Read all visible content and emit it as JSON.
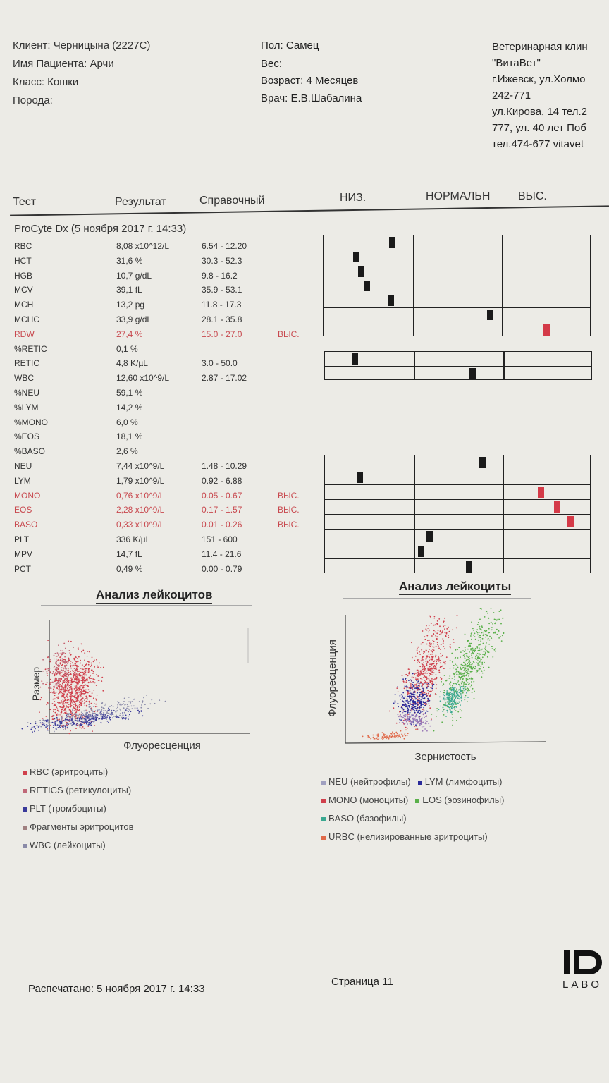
{
  "client": {
    "client_line": "Клиент: Черницына (2227С)",
    "patient_line": "Имя Пациента: Арчи",
    "class_line": "Класс: Кошки",
    "breed_line": "Порода:",
    "sex_line": "Пол: Самец",
    "weight_line": "Вес:",
    "age_line": "Возраст: 4 Месяцев",
    "doctor_line": "Врач: Е.В.Шабалина"
  },
  "clinic": {
    "lines": [
      "Ветеринарная клин",
      "\"ВитаВет\"",
      "г.Ижевск, ул.Холмо",
      "242-771",
      "ул.Кирова, 14 тел.2",
      "777, ул. 40 лет Поб",
      "тел.474-677 vitavet"
    ]
  },
  "columns": {
    "test": "Тест",
    "result": "Результат",
    "reference": "Справочный",
    "low": "НИЗ.",
    "normal": "НОРМАЛЬН",
    "high": "ВЫС."
  },
  "instrument": "ProCyte Dx (5 ноября 2017 г. 14:33)",
  "rows": [
    {
      "name": "RBC",
      "result": "8,08 x10^12/L",
      "ref": "6.54 - 12.20",
      "flag": ""
    },
    {
      "name": "HCT",
      "result": "31,6 %",
      "ref": "30.3 - 52.3",
      "flag": ""
    },
    {
      "name": "HGB",
      "result": "10,7 g/dL",
      "ref": "9.8 - 16.2",
      "flag": ""
    },
    {
      "name": "MCV",
      "result": "39,1 fL",
      "ref": "35.9 - 53.1",
      "flag": ""
    },
    {
      "name": "MCH",
      "result": "13,2 pg",
      "ref": "11.8 - 17.3",
      "flag": ""
    },
    {
      "name": "MCHC",
      "result": "33,9 g/dL",
      "ref": "28.1 - 35.8",
      "flag": ""
    },
    {
      "name": "RDW",
      "result": "27,4 %",
      "ref": "15.0 - 27.0",
      "flag": "ВЫС."
    },
    {
      "name": "%RETIC",
      "result": "0,1 %",
      "ref": "",
      "flag": ""
    },
    {
      "name": "RETIC",
      "result": "4,8 K/µL",
      "ref": "3.0 - 50.0",
      "flag": ""
    },
    {
      "name": "WBC",
      "result": "12,60 x10^9/L",
      "ref": "2.87 - 17.02",
      "flag": ""
    },
    {
      "name": "%NEU",
      "result": "59,1 %",
      "ref": "",
      "flag": ""
    },
    {
      "name": "%LYM",
      "result": "14,2 %",
      "ref": "",
      "flag": ""
    },
    {
      "name": "%MONO",
      "result": "6,0 %",
      "ref": "",
      "flag": ""
    },
    {
      "name": "%EOS",
      "result": "18,1 %",
      "ref": "",
      "flag": ""
    },
    {
      "name": "%BASO",
      "result": "2,6 %",
      "ref": "",
      "flag": ""
    },
    {
      "name": "NEU",
      "result": "7,44 x10^9/L",
      "ref": "1.48 - 10.29",
      "flag": ""
    },
    {
      "name": "LYM",
      "result": "1,79 x10^9/L",
      "ref": "0.92 - 6.88",
      "flag": ""
    },
    {
      "name": "MONO",
      "result": "0,76 x10^9/L",
      "ref": "0.05 - 0.67",
      "flag": "ВЫС."
    },
    {
      "name": "EOS",
      "result": "2,28 x10^9/L",
      "ref": "0.17 - 1.57",
      "flag": "ВЫС."
    },
    {
      "name": "BASO",
      "result": "0,33 x10^9/L",
      "ref": "0.01 - 0.26",
      "flag": "ВЫС."
    },
    {
      "name": "PLT",
      "result": "336 K/µL",
      "ref": "151 - 600",
      "flag": ""
    },
    {
      "name": "MPV",
      "result": "14,7 fL",
      "ref": "11.4 - 21.6",
      "flag": ""
    },
    {
      "name": "PCT",
      "result": "0,49 %",
      "ref": "0.00 - 0.79",
      "flag": ""
    }
  ],
  "bar_groups": [
    {
      "markers": [
        {
          "pos": 0.245,
          "high": false
        },
        {
          "pos": 0.11,
          "high": false
        },
        {
          "pos": 0.13,
          "high": false
        },
        {
          "pos": 0.15,
          "high": false
        },
        {
          "pos": 0.24,
          "high": false
        },
        {
          "pos": 0.61,
          "high": false
        },
        {
          "pos": 0.82,
          "high": true
        }
      ]
    },
    {
      "markers": [
        {
          "pos": 0.1,
          "high": false
        },
        {
          "pos": 0.54,
          "high": false
        }
      ]
    },
    {
      "markers": [
        {
          "pos": 0.58,
          "high": false
        },
        {
          "pos": 0.12,
          "high": false
        },
        {
          "pos": 0.8,
          "high": true
        },
        {
          "pos": 0.86,
          "high": true
        },
        {
          "pos": 0.91,
          "high": true
        },
        {
          "pos": 0.38,
          "high": false
        },
        {
          "pos": 0.35,
          "high": false
        },
        {
          "pos": 0.53,
          "high": false
        }
      ]
    }
  ],
  "chart_left": {
    "title": "Анализ лейкоцитов",
    "xlabel": "Флуоресценция",
    "ylabel": "Размер",
    "legend": [
      {
        "label": "RBC (эритроциты)",
        "color": "#d0404c"
      },
      {
        "label": "RETICS (ретикулоциты)",
        "color": "#c06878"
      },
      {
        "label": "PLT (тромбоциты)",
        "color": "#3a3a9a"
      },
      {
        "label": "Фрагменты эритроцитов",
        "color": "#a08080"
      },
      {
        "label": "WBC (лейкоциты)",
        "color": "#8a8aa8"
      }
    ]
  },
  "chart_right": {
    "title": "Анализ лейкоциты",
    "xlabel": "Зернистость",
    "ylabel": "Флуоресценция",
    "legend": [
      {
        "label": "NEU (нейтрофилы)",
        "color": "#a0a0c0"
      },
      {
        "label": "LYM (лимфоциты)",
        "color": "#2a2a9a"
      },
      {
        "label": "MONO (моноциты)",
        "color": "#d0404c"
      },
      {
        "label": "EOS (эозинофилы)",
        "color": "#5ab04a"
      },
      {
        "label": "BASO (базофилы)",
        "color": "#3aa890"
      },
      {
        "label": "URBC (нелизированные эритроциты)",
        "color": "#e06a4a"
      }
    ]
  },
  "footer": {
    "printed": "Распечатано: 5 ноября 2017 г. 14:33",
    "page": "Страница 11",
    "logo_text": "LABO"
  }
}
